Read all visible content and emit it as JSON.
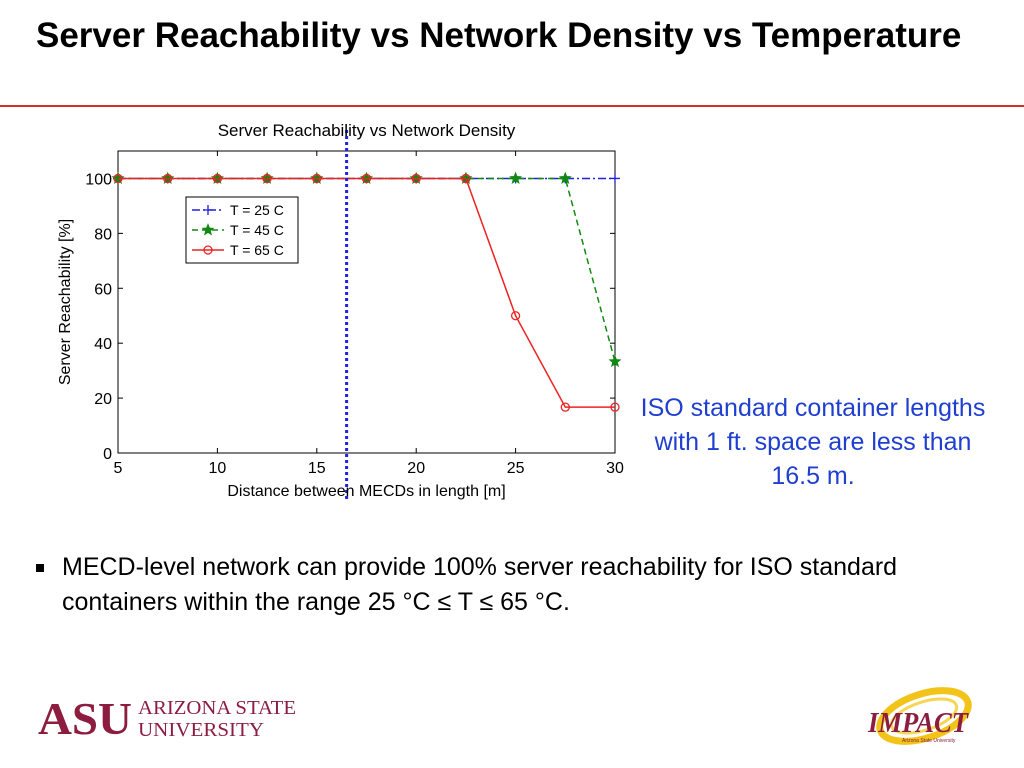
{
  "slide": {
    "title": "Server Reachability vs Network Density vs Temperature",
    "callout": "ISO standard container lengths with 1 ft. space are less than 16.5 m.",
    "bullet": "MECD-level network can provide 100% server reachability for ISO standard containers within the range 25 °C ≤ T ≤ 65 °C.",
    "accent_color": "#d03030",
    "callout_color": "#1f3fd0"
  },
  "logos": {
    "asu_mark": "ASU",
    "asu_name_line1": "ARIZONA STATE",
    "asu_name_line2": "UNIVERSITY",
    "impact_name": "IMPACT",
    "impact_sub": "Arizona State University"
  },
  "chart_data": {
    "type": "line",
    "title": "Server Reachability vs Network Density",
    "xlabel": "Distance between MECDs in length [m]",
    "ylabel": "Server Reachability [%]",
    "xlim": [
      5,
      30
    ],
    "ylim": [
      0,
      110
    ],
    "xticks": [
      5,
      10,
      15,
      20,
      25,
      30
    ],
    "yticks": [
      0,
      20,
      40,
      60,
      80,
      100
    ],
    "grid": false,
    "legend_position": "top-left",
    "x": [
      5,
      7.5,
      10,
      12.5,
      15,
      17.5,
      20,
      22.5,
      25,
      27.5,
      30
    ],
    "series": [
      {
        "name": "T = 25 C",
        "color": "#2020e0",
        "dash": "dashdot",
        "marker": "plus",
        "values": [
          100,
          100,
          100,
          100,
          100,
          100,
          100,
          100,
          100,
          100,
          100
        ]
      },
      {
        "name": "T = 45 C",
        "color": "#118811",
        "dash": "dashed",
        "marker": "star",
        "values": [
          100,
          100,
          100,
          100,
          100,
          100,
          100,
          100,
          100,
          100,
          33.3
        ]
      },
      {
        "name": "T = 65 C",
        "color": "#ee2222",
        "dash": "solid",
        "marker": "circle",
        "values": [
          100,
          100,
          100,
          100,
          100,
          100,
          100,
          100,
          50,
          16.7,
          16.7
        ]
      }
    ],
    "annotations": [
      {
        "type": "vline",
        "x": 16.5,
        "color": "#2020e0",
        "style": "dotted"
      }
    ]
  }
}
